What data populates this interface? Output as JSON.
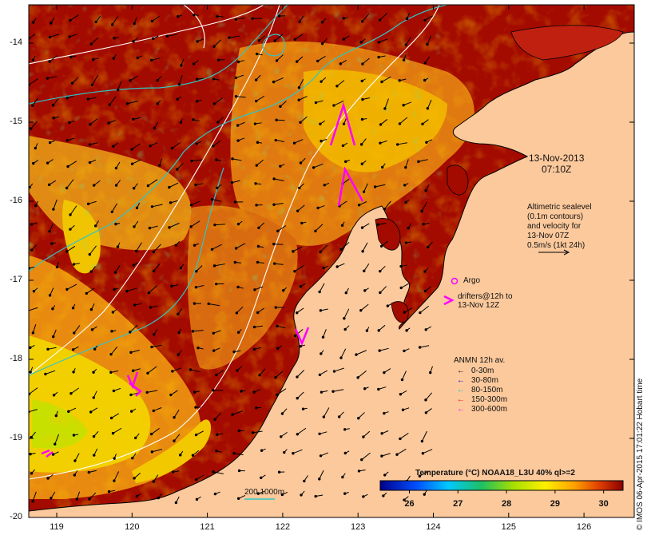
{
  "map": {
    "date_label": "13-Nov-2013",
    "time_label": "07:10Z",
    "altimetry_note": [
      "Altimetric sealevel",
      "(0.1m contours)",
      "and velocity for",
      "13-Nov 07Z",
      "0.5m/s (1kt 24h)"
    ],
    "argo_label": "Argo",
    "drifters_note": [
      "drifters@12h to",
      "13-Nov 12Z"
    ],
    "isobath_label": "200  1000m",
    "credit": "© IMOS 06-Apr-2015 17:01:22 Hobart time",
    "colors": {
      "land": "#fcc99c",
      "hot": "#a30a00",
      "isobath": "#2ec7c7",
      "drifter": "#ff00ff"
    }
  },
  "axes": {
    "lon_ticks": [
      "119",
      "120",
      "121",
      "122",
      "123",
      "124",
      "125",
      "126"
    ],
    "lat_ticks": [
      "-14",
      "-15",
      "-16",
      "-17",
      "-18",
      "-19",
      "-20"
    ]
  },
  "anmn_legend": {
    "title": "ANMN 12h av.",
    "items": [
      {
        "label": "0-30m",
        "color": "#000000"
      },
      {
        "label": "30-80m",
        "color": "#0000ff"
      },
      {
        "label": "80-150m",
        "color": "#00c8c8"
      },
      {
        "label": "150-300m",
        "color": "#ff0000"
      },
      {
        "label": "300-600m",
        "color": "#ff00ff"
      }
    ]
  },
  "colorbar": {
    "title": "Temperature (°C) NOAA18_L3U 40% ql>=2",
    "ticks": [
      "26",
      "27",
      "28",
      "29",
      "30"
    ],
    "range": [
      25.4,
      30.4
    ]
  }
}
